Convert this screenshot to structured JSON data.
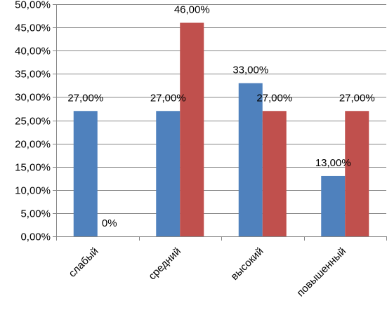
{
  "chart_data": {
    "type": "bar",
    "categories": [
      "слабый",
      "средний",
      "высокий",
      "повышенный"
    ],
    "series": [
      {
        "values": [
          27,
          27,
          33,
          13
        ],
        "labels": [
          "27,00%",
          "27,00%",
          "33,00%",
          "13,00%"
        ],
        "color": "#4F81BD"
      },
      {
        "values": [
          0,
          46,
          27,
          27
        ],
        "labels": [
          "0%",
          "46,00%",
          "27,00%",
          "27,00%"
        ],
        "color": "#C0504D"
      }
    ],
    "ylim": [
      0,
      50
    ],
    "yticks": [
      0,
      5,
      10,
      15,
      20,
      25,
      30,
      35,
      40,
      45,
      50
    ],
    "ytick_labels": [
      "0,00%",
      "5,00%",
      "10,00%",
      "15,00%",
      "20,00%",
      "25,00%",
      "30,00%",
      "35,00%",
      "40,00%",
      "45,00%",
      "50,00%"
    ],
    "grid": true,
    "legend": "none",
    "title": "",
    "xlabel": "",
    "ylabel": ""
  }
}
